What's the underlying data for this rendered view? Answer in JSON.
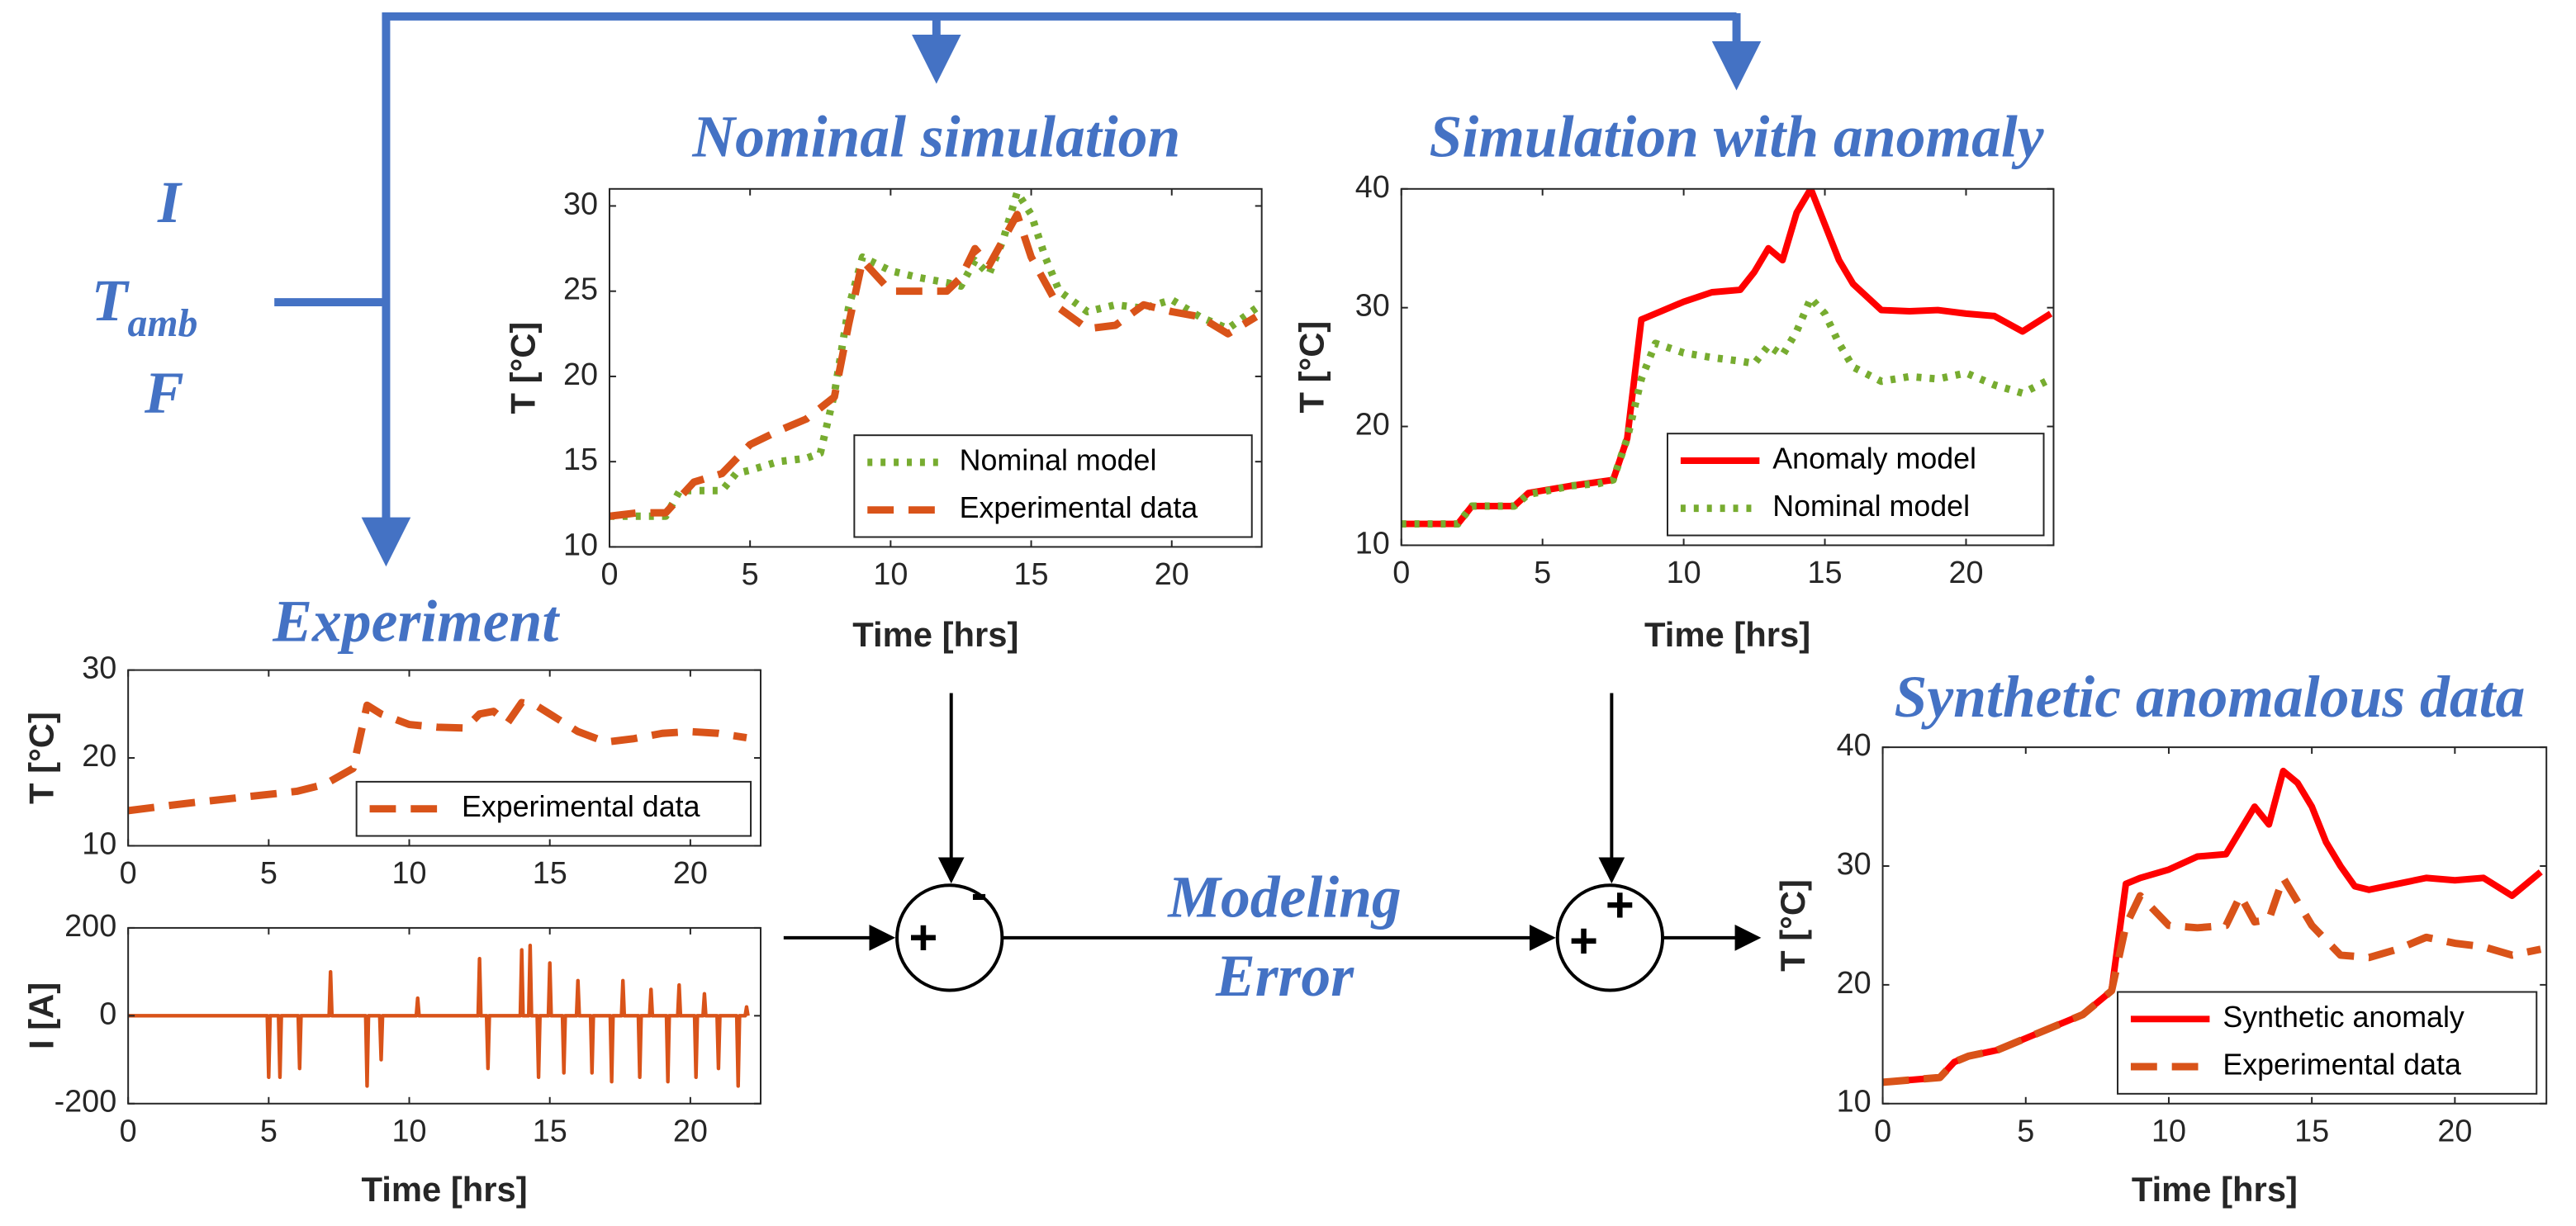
{
  "chart_data": [
    {
      "type": "line",
      "title": "Nominal simulation",
      "xlabel": "Time [hrs]",
      "ylabel": "T [°C]",
      "xlim": [
        0,
        23.2
      ],
      "ylim": [
        10,
        31
      ],
      "xticks": [
        0,
        5,
        10,
        15,
        20
      ],
      "yticks": [
        10,
        15,
        20,
        25,
        30
      ],
      "legend": "lower right",
      "series": [
        {
          "name": "Nominal model",
          "color": "#77ac30",
          "style": "dotted",
          "x": [
            0,
            1,
            2,
            2.5,
            4,
            4.5,
            5,
            6,
            7,
            7.5,
            8,
            8.5,
            9,
            10,
            11,
            12,
            12.5,
            13,
            13.5,
            14,
            14.5,
            15,
            15.5,
            16,
            17,
            18,
            19,
            20,
            21,
            22,
            23
          ],
          "values": [
            11.8,
            11.8,
            11.8,
            13.3,
            13.3,
            14.3,
            14.5,
            15,
            15.2,
            15.5,
            19,
            24,
            27,
            26.2,
            25.8,
            25.5,
            25.3,
            26.8,
            26,
            28,
            30.8,
            29.5,
            27,
            25,
            23.8,
            24.2,
            24,
            24.5,
            23.5,
            22.8,
            24
          ]
        },
        {
          "name": "Experimental data",
          "color": "#d95319",
          "style": "dashed",
          "x": [
            0,
            1,
            2,
            3,
            4,
            5,
            6,
            7,
            8,
            8.5,
            9,
            10,
            11,
            12,
            12.5,
            13,
            13.5,
            14,
            14.5,
            15,
            16,
            17,
            18,
            19,
            20,
            21,
            22,
            23
          ],
          "values": [
            11.8,
            12,
            12,
            13.8,
            14.3,
            16,
            16.8,
            17.5,
            18.8,
            23,
            26.8,
            25,
            25,
            25,
            25.8,
            27.5,
            26.5,
            28,
            29.5,
            27,
            24,
            22.8,
            23,
            24.2,
            23.8,
            23.5,
            22.5,
            23.5
          ]
        }
      ]
    },
    {
      "type": "line",
      "title": "Simulation with anomaly",
      "xlabel": "Time [hrs]",
      "ylabel": "T [°C]",
      "xlim": [
        0,
        23.1
      ],
      "ylim": [
        10,
        40
      ],
      "xticks": [
        0,
        5,
        10,
        15,
        20
      ],
      "yticks": [
        10,
        20,
        30,
        40
      ],
      "legend": "lower right",
      "series": [
        {
          "name": "Anomaly model",
          "color": "#ff0000",
          "style": "solid",
          "x": [
            0,
            2,
            2.5,
            4,
            4.5,
            6,
            7.5,
            8,
            8.5,
            9,
            10,
            11,
            12,
            12.5,
            13,
            13.5,
            14,
            14.5,
            15,
            15.5,
            16,
            17,
            18,
            19,
            20,
            21,
            22,
            23
          ],
          "values": [
            11.8,
            11.8,
            13.3,
            13.3,
            14.4,
            15,
            15.5,
            19,
            29,
            29.5,
            30.5,
            31.3,
            31.5,
            33,
            35,
            34,
            38,
            40,
            37,
            34,
            32,
            29.8,
            29.7,
            29.8,
            29.5,
            29.3,
            28,
            29.5
          ]
        },
        {
          "name": "Nominal model",
          "color": "#77ac30",
          "style": "dotted",
          "x": [
            0,
            1,
            2,
            2.5,
            4,
            4.5,
            5,
            6,
            7,
            7.5,
            8,
            8.5,
            9,
            10,
            11,
            12,
            12.5,
            13,
            13.5,
            14,
            14.5,
            15,
            15.5,
            16,
            17,
            18,
            19,
            20,
            21,
            22,
            23
          ],
          "values": [
            11.8,
            11.8,
            11.8,
            13.3,
            13.3,
            14.3,
            14.5,
            15,
            15.2,
            15.5,
            19,
            24,
            27,
            26.2,
            25.8,
            25.5,
            25.3,
            26.8,
            26,
            28,
            30.8,
            29.5,
            27,
            25,
            23.8,
            24.2,
            24,
            24.5,
            23.5,
            22.8,
            24
          ]
        }
      ]
    },
    {
      "type": "line",
      "title": "Experiment",
      "ylabel": "T [°C]",
      "xlim": [
        0,
        22.5
      ],
      "ylim": [
        10,
        30
      ],
      "xticks": [
        0,
        5,
        10,
        15,
        20
      ],
      "yticks": [
        10,
        20,
        30
      ],
      "legend": "lower right",
      "series": [
        {
          "name": "Experimental data",
          "color": "#d95319",
          "style": "dashed",
          "x": [
            0,
            2,
            4,
            6,
            7,
            8,
            8.5,
            9,
            10,
            11,
            12,
            12.5,
            13,
            13.5,
            14,
            14.5,
            15,
            16,
            17,
            18,
            19,
            20,
            21,
            22
          ],
          "values": [
            14,
            14.8,
            15.5,
            16.2,
            17,
            18.8,
            26,
            25,
            23.8,
            23.5,
            23.4,
            25,
            25.3,
            24,
            26.3,
            26,
            25,
            23,
            21.8,
            22.2,
            22.8,
            23,
            22.8,
            22.3
          ]
        }
      ]
    },
    {
      "type": "line",
      "xlabel": "Time [hrs]",
      "ylabel": "I [A]",
      "xlim": [
        0,
        22.5
      ],
      "ylim": [
        -200,
        200
      ],
      "xticks": [
        0,
        5,
        10,
        15,
        20
      ],
      "yticks": [
        -200,
        0,
        200
      ],
      "series": [
        {
          "color": "#d95319",
          "style": "solid",
          "x": [
            0,
            4.95,
            5,
            5.05,
            5.35,
            5.4,
            5.45,
            6.05,
            6.1,
            6.15,
            7.15,
            7.2,
            7.25,
            8.45,
            8.5,
            8.55,
            8.95,
            9,
            9.05,
            10.25,
            10.3,
            10.35,
            12.45,
            12.5,
            12.55,
            12.75,
            12.8,
            12.85,
            13.95,
            14,
            14.05,
            14.25,
            14.3,
            14.35,
            14.55,
            14.6,
            14.65,
            14.95,
            15,
            15.05,
            15.45,
            15.5,
            15.55,
            15.95,
            16,
            16.05,
            16.45,
            16.5,
            16.55,
            17.15,
            17.2,
            17.25,
            17.55,
            17.6,
            17.65,
            18.15,
            18.2,
            18.25,
            18.55,
            18.6,
            18.65,
            19.15,
            19.2,
            19.25,
            19.55,
            19.6,
            19.65,
            20.15,
            20.2,
            20.25,
            20.45,
            20.5,
            20.55,
            20.95,
            21,
            21.05,
            21.65,
            21.7,
            21.75,
            21.95,
            22,
            22.05
          ],
          "values": [
            0,
            0,
            -140,
            0,
            0,
            -140,
            0,
            0,
            -120,
            0,
            0,
            100,
            0,
            0,
            -160,
            0,
            0,
            -100,
            0,
            0,
            40,
            0,
            0,
            130,
            0,
            0,
            -120,
            0,
            0,
            150,
            0,
            0,
            160,
            0,
            0,
            -140,
            0,
            0,
            120,
            0,
            0,
            -130,
            0,
            0,
            80,
            0,
            0,
            -130,
            0,
            0,
            -150,
            0,
            0,
            80,
            0,
            0,
            -140,
            0,
            0,
            60,
            0,
            0,
            -150,
            0,
            0,
            70,
            0,
            0,
            -140,
            0,
            0,
            50,
            0,
            0,
            -120,
            0,
            0,
            -160,
            0,
            0,
            20,
            0
          ]
        }
      ]
    },
    {
      "type": "line",
      "title": "Synthetic anomalous data",
      "xlabel": "Time [hrs]",
      "ylabel": "T [°C]",
      "xlim": [
        0,
        23.2
      ],
      "ylim": [
        10,
        40
      ],
      "xticks": [
        0,
        5,
        10,
        15,
        20
      ],
      "yticks": [
        10,
        20,
        30,
        40
      ],
      "legend": "lower right",
      "series": [
        {
          "name": "Synthetic anomaly",
          "color": "#ff0000",
          "style": "solid",
          "x": [
            0,
            2,
            2.5,
            3,
            4,
            5,
            6,
            7,
            8,
            8.5,
            9,
            10,
            11,
            12,
            12.5,
            13,
            13.5,
            14,
            14.5,
            15,
            15.5,
            16,
            16.5,
            17,
            18,
            19,
            20,
            21,
            22,
            23
          ],
          "values": [
            11.8,
            12.2,
            13.5,
            14,
            14.5,
            15.5,
            16.5,
            17.5,
            19.5,
            28.5,
            29,
            29.7,
            30.8,
            31,
            33,
            35,
            33.5,
            38,
            37,
            35,
            32,
            30,
            28.3,
            28,
            28.5,
            29,
            28.8,
            29,
            27.5,
            29.5
          ]
        },
        {
          "name": "Experimental data",
          "color": "#d95319",
          "style": "dashed",
          "x": [
            0,
            2,
            2.5,
            3,
            4,
            5,
            6,
            7,
            8,
            8.5,
            9,
            10,
            11,
            12,
            12.5,
            13,
            13.5,
            14,
            14.5,
            15,
            16,
            17,
            18,
            19,
            20,
            21,
            22,
            23
          ],
          "values": [
            11.8,
            12.2,
            13.5,
            14,
            14.5,
            15.5,
            16.5,
            17.5,
            19.5,
            25,
            27.5,
            25,
            24.8,
            25,
            27.5,
            25.3,
            25.5,
            29,
            27,
            25,
            22.5,
            22.3,
            23,
            24,
            23.5,
            23.2,
            22.5,
            23
          ]
        }
      ]
    }
  ],
  "diagram": {
    "inputs": [
      {
        "text": "I"
      },
      {
        "text": "T",
        "sub": "amb"
      },
      {
        "text": "F"
      }
    ],
    "error_label": [
      "Modeling",
      "Error"
    ],
    "junctions": [
      {
        "signs": [
          "+",
          "-"
        ]
      },
      {
        "signs": [
          "+",
          "+"
        ]
      }
    ]
  }
}
